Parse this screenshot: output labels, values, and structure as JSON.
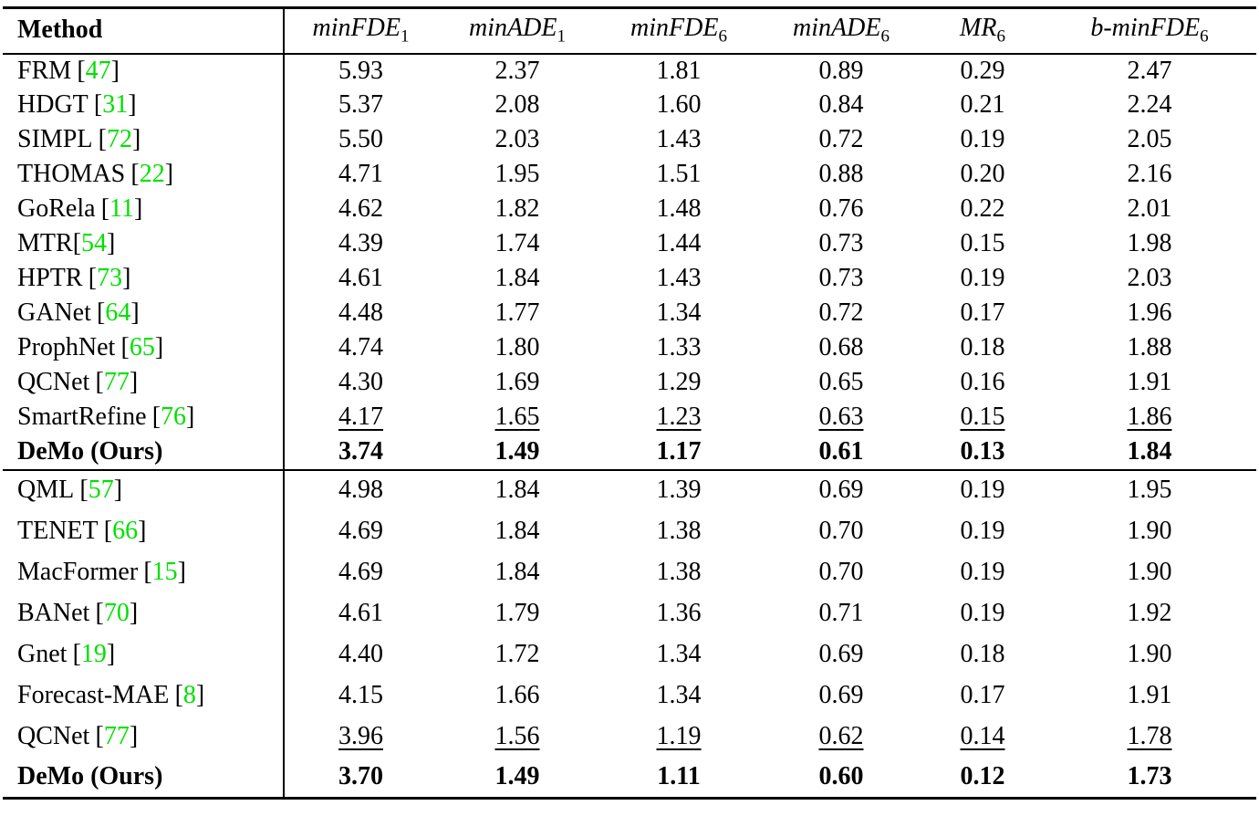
{
  "page": {
    "background": "#ffffff"
  },
  "table": {
    "cite_color": "#00e000",
    "cite_open": "[",
    "cite_close": "]",
    "header": {
      "method": "Method",
      "columns": [
        {
          "base": "minFDE",
          "sub": "1"
        },
        {
          "base": "minADE",
          "sub": "1"
        },
        {
          "base": "minFDE",
          "sub": "6"
        },
        {
          "base": "minADE",
          "sub": "6"
        },
        {
          "base": "MR",
          "sub": "6"
        },
        {
          "base": "b-minFDE",
          "sub": "6"
        }
      ]
    },
    "groups": [
      {
        "rows": [
          {
            "name": "FRM",
            "cite": "47",
            "values": [
              "5.93",
              "2.37",
              "1.81",
              "0.89",
              "0.29",
              "2.47"
            ]
          },
          {
            "name": "HDGT",
            "cite": "31",
            "values": [
              "5.37",
              "2.08",
              "1.60",
              "0.84",
              "0.21",
              "2.24"
            ]
          },
          {
            "name": "SIMPL",
            "cite": "72",
            "values": [
              "5.50",
              "2.03",
              "1.43",
              "0.72",
              "0.19",
              "2.05"
            ]
          },
          {
            "name": "THOMAS",
            "cite": "22",
            "values": [
              "4.71",
              "1.95",
              "1.51",
              "0.88",
              "0.20",
              "2.16"
            ]
          },
          {
            "name": "GoRela",
            "cite": "11",
            "values": [
              "4.62",
              "1.82",
              "1.48",
              "0.76",
              "0.22",
              "2.01"
            ]
          },
          {
            "name": "MTR",
            "cite": "54",
            "tight": true,
            "values": [
              "4.39",
              "1.74",
              "1.44",
              "0.73",
              "0.15",
              "1.98"
            ]
          },
          {
            "name": "HPTR",
            "cite": "73",
            "values": [
              "4.61",
              "1.84",
              "1.43",
              "0.73",
              "0.19",
              "2.03"
            ]
          },
          {
            "name": "GANet",
            "cite": "64",
            "values": [
              "4.48",
              "1.77",
              "1.34",
              "0.72",
              "0.17",
              "1.96"
            ]
          },
          {
            "name": "ProphNet",
            "cite": "65",
            "values": [
              "4.74",
              "1.80",
              "1.33",
              "0.68",
              "0.18",
              "1.88"
            ]
          },
          {
            "name": "QCNet",
            "cite": "77",
            "values": [
              "4.30",
              "1.69",
              "1.29",
              "0.65",
              "0.16",
              "1.91"
            ]
          },
          {
            "name": "SmartRefine",
            "cite": "76",
            "underline": true,
            "values": [
              "4.17",
              "1.65",
              "1.23",
              "0.63",
              "0.15",
              "1.86"
            ]
          },
          {
            "name": "DeMo (Ours)",
            "cite": null,
            "bold": true,
            "values": [
              "3.74",
              "1.49",
              "1.17",
              "0.61",
              "0.13",
              "1.84"
            ]
          }
        ]
      },
      {
        "rows": [
          {
            "name": "QML",
            "cite": "57",
            "values": [
              "4.98",
              "1.84",
              "1.39",
              "0.69",
              "0.19",
              "1.95"
            ]
          },
          {
            "name": "TENET",
            "cite": "66",
            "values": [
              "4.69",
              "1.84",
              "1.38",
              "0.70",
              "0.19",
              "1.90"
            ]
          },
          {
            "name": "MacFormer",
            "cite": "15",
            "values": [
              "4.69",
              "1.84",
              "1.38",
              "0.70",
              "0.19",
              "1.90"
            ]
          },
          {
            "name": "BANet",
            "cite": "70",
            "values": [
              "4.61",
              "1.79",
              "1.36",
              "0.71",
              "0.19",
              "1.92"
            ]
          },
          {
            "name": "Gnet",
            "cite": "19",
            "values": [
              "4.40",
              "1.72",
              "1.34",
              "0.69",
              "0.18",
              "1.90"
            ]
          },
          {
            "name": "Forecast-MAE",
            "cite": "8",
            "values": [
              "4.15",
              "1.66",
              "1.34",
              "0.69",
              "0.17",
              "1.91"
            ]
          },
          {
            "name": "QCNet",
            "cite": "77",
            "underline": true,
            "values": [
              "3.96",
              "1.56",
              "1.19",
              "0.62",
              "0.14",
              "1.78"
            ]
          },
          {
            "name": "DeMo (Ours)",
            "cite": null,
            "bold": true,
            "values": [
              "3.70",
              "1.49",
              "1.11",
              "0.60",
              "0.12",
              "1.73"
            ]
          }
        ]
      }
    ]
  }
}
